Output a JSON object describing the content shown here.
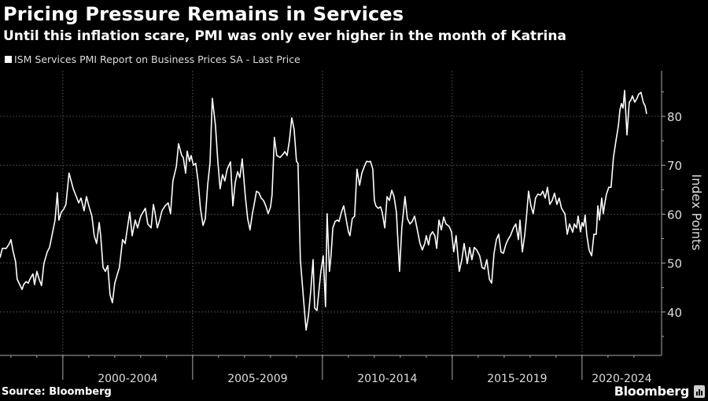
{
  "header": {
    "title": "Pricing Pressure Remains in Services",
    "subtitle": "Until this inflation scare, PMI was only ever higher in the month of Katrina"
  },
  "footer": {
    "source": "Source: Bloomberg",
    "brand": "Bloomberg",
    "brand_icon": "bloomberg-terminal-icon"
  },
  "colors": {
    "background": "#000000",
    "line": "#ffffff",
    "grid": "#555555",
    "axis": "#aaaaaa",
    "text": "#ffffff"
  },
  "chart_data": {
    "type": "line",
    "title": "Pricing Pressure Remains in Services",
    "subtitle": "Until this inflation scare, PMI was only ever higher in the month of Katrina",
    "legend": [
      "ISM Services PMI Report on Business Prices SA - Last Price"
    ],
    "legend_position": "top-left",
    "xlabel": "",
    "ylabel": "Index Points",
    "ylim": [
      33,
      89
    ],
    "xlim": [
      1997.58,
      2022.6
    ],
    "yticks": [
      40,
      50,
      60,
      70,
      80
    ],
    "ytick_labels": [
      "40",
      "50",
      "60",
      "70",
      "80"
    ],
    "xtick_groups": [
      {
        "label": "2000-2004",
        "start": 2000,
        "end": 2005
      },
      {
        "label": "2005-2009",
        "start": 2005,
        "end": 2010
      },
      {
        "label": "2010-2014",
        "start": 2010,
        "end": 2015
      },
      {
        "label": "2015-2019",
        "start": 2015,
        "end": 2020
      },
      {
        "label": "2020-2024",
        "start": 2020,
        "end": 2025
      }
    ],
    "grid": true,
    "series": [
      {
        "name": "ISM Services PMI Report on Business Prices SA - Last Price",
        "points": [
          [
            1997.58,
            51.1
          ],
          [
            1997.67,
            53.0
          ],
          [
            1997.82,
            53.0
          ],
          [
            1997.94,
            54.0
          ],
          [
            1998.0,
            54.8
          ],
          [
            1998.09,
            52.3
          ],
          [
            1998.18,
            50.3
          ],
          [
            1998.24,
            46.7
          ],
          [
            1998.34,
            45.6
          ],
          [
            1998.43,
            44.6
          ],
          [
            1998.49,
            45.6
          ],
          [
            1998.58,
            46.2
          ],
          [
            1998.67,
            45.9
          ],
          [
            1998.73,
            46.7
          ],
          [
            1998.85,
            47.8
          ],
          [
            1998.91,
            45.6
          ],
          [
            1999.0,
            48.3
          ],
          [
            1999.09,
            46.7
          ],
          [
            1999.18,
            45.4
          ],
          [
            1999.27,
            49.9
          ],
          [
            1999.4,
            52.3
          ],
          [
            1999.49,
            53.2
          ],
          [
            1999.58,
            55.6
          ],
          [
            1999.7,
            58.8
          ],
          [
            1999.79,
            64.4
          ],
          [
            1999.85,
            58.8
          ],
          [
            1999.94,
            60.4
          ],
          [
            2000.03,
            61.0
          ],
          [
            2000.12,
            62.0
          ],
          [
            2000.24,
            68.4
          ],
          [
            2000.4,
            65.2
          ],
          [
            2000.52,
            63.6
          ],
          [
            2000.61,
            62.3
          ],
          [
            2000.7,
            63.3
          ],
          [
            2000.82,
            60.7
          ],
          [
            2000.91,
            63.6
          ],
          [
            2001.0,
            61.7
          ],
          [
            2001.12,
            59.6
          ],
          [
            2001.21,
            55.6
          ],
          [
            2001.3,
            54.0
          ],
          [
            2001.4,
            58.3
          ],
          [
            2001.46,
            55.6
          ],
          [
            2001.55,
            49.1
          ],
          [
            2001.64,
            48.3
          ],
          [
            2001.73,
            49.5
          ],
          [
            2001.82,
            43.5
          ],
          [
            2001.91,
            41.9
          ],
          [
            2002.0,
            45.9
          ],
          [
            2002.09,
            47.5
          ],
          [
            2002.18,
            49.1
          ],
          [
            2002.3,
            54.8
          ],
          [
            2002.4,
            54.0
          ],
          [
            2002.49,
            57.2
          ],
          [
            2002.58,
            60.4
          ],
          [
            2002.67,
            55.6
          ],
          [
            2002.79,
            58.8
          ],
          [
            2002.88,
            57.2
          ],
          [
            2003.0,
            59.6
          ],
          [
            2003.09,
            60.4
          ],
          [
            2003.18,
            61.2
          ],
          [
            2003.27,
            58.0
          ],
          [
            2003.4,
            57.2
          ],
          [
            2003.49,
            62.0
          ],
          [
            2003.55,
            60.4
          ],
          [
            2003.64,
            57.2
          ],
          [
            2003.73,
            58.8
          ],
          [
            2003.82,
            60.7
          ],
          [
            2003.94,
            61.7
          ],
          [
            2004.06,
            62.3
          ],
          [
            2004.15,
            60.1
          ],
          [
            2004.24,
            66.8
          ],
          [
            2004.37,
            69.7
          ],
          [
            2004.46,
            74.4
          ],
          [
            2004.58,
            72.0
          ],
          [
            2004.64,
            71.6
          ],
          [
            2004.73,
            68.4
          ],
          [
            2004.79,
            72.9
          ],
          [
            2004.88,
            70.8
          ],
          [
            2004.94,
            72.0
          ],
          [
            2005.03,
            70.0
          ],
          [
            2005.12,
            70.4
          ],
          [
            2005.21,
            66.8
          ],
          [
            2005.3,
            61.2
          ],
          [
            2005.4,
            57.7
          ],
          [
            2005.49,
            59.1
          ],
          [
            2005.58,
            66.0
          ],
          [
            2005.67,
            70.5
          ],
          [
            2005.76,
            83.7
          ],
          [
            2005.88,
            78.1
          ],
          [
            2005.97,
            70.8
          ],
          [
            2006.06,
            65.2
          ],
          [
            2006.15,
            68.1
          ],
          [
            2006.24,
            66.8
          ],
          [
            2006.33,
            69.2
          ],
          [
            2006.46,
            70.7
          ],
          [
            2006.55,
            61.7
          ],
          [
            2006.64,
            66.5
          ],
          [
            2006.73,
            68.7
          ],
          [
            2006.82,
            67.5
          ],
          [
            2006.91,
            71.3
          ],
          [
            2007.03,
            63.6
          ],
          [
            2007.12,
            59.1
          ],
          [
            2007.21,
            56.8
          ],
          [
            2007.3,
            60.1
          ],
          [
            2007.37,
            62.0
          ],
          [
            2007.46,
            64.7
          ],
          [
            2007.55,
            64.4
          ],
          [
            2007.64,
            63.3
          ],
          [
            2007.73,
            62.8
          ],
          [
            2007.82,
            61.7
          ],
          [
            2007.91,
            60.1
          ],
          [
            2008.0,
            61.5
          ],
          [
            2008.06,
            63.9
          ],
          [
            2008.15,
            75.7
          ],
          [
            2008.24,
            72.0
          ],
          [
            2008.37,
            71.6
          ],
          [
            2008.49,
            72.3
          ],
          [
            2008.55,
            72.8
          ],
          [
            2008.64,
            72.0
          ],
          [
            2008.73,
            75.2
          ],
          [
            2008.82,
            79.7
          ],
          [
            2008.91,
            77.3
          ],
          [
            2009.0,
            70.8
          ],
          [
            2009.06,
            70.4
          ],
          [
            2009.15,
            50.7
          ],
          [
            2009.27,
            42.7
          ],
          [
            2009.37,
            36.3
          ],
          [
            2009.46,
            39.2
          ],
          [
            2009.55,
            44.3
          ],
          [
            2009.64,
            50.7
          ],
          [
            2009.7,
            40.8
          ],
          [
            2009.79,
            40.3
          ],
          [
            2009.94,
            48.3
          ],
          [
            2010.03,
            51.5
          ],
          [
            2010.12,
            41.1
          ],
          [
            2010.18,
            60.1
          ],
          [
            2010.27,
            48.3
          ],
          [
            2010.33,
            51.5
          ],
          [
            2010.4,
            57.2
          ],
          [
            2010.49,
            58.5
          ],
          [
            2010.58,
            58.8
          ],
          [
            2010.64,
            58.5
          ],
          [
            2010.73,
            60.4
          ],
          [
            2010.82,
            61.7
          ],
          [
            2010.91,
            59.1
          ],
          [
            2011.0,
            56.4
          ],
          [
            2011.06,
            55.6
          ],
          [
            2011.15,
            59.1
          ],
          [
            2011.24,
            59.6
          ],
          [
            2011.33,
            69.2
          ],
          [
            2011.43,
            65.9
          ],
          [
            2011.52,
            68.4
          ],
          [
            2011.61,
            69.7
          ],
          [
            2011.7,
            70.8
          ],
          [
            2011.79,
            70.7
          ],
          [
            2011.85,
            70.8
          ],
          [
            2011.94,
            69.2
          ],
          [
            2012.0,
            62.8
          ],
          [
            2012.06,
            61.7
          ],
          [
            2012.15,
            61.2
          ],
          [
            2012.24,
            61.5
          ],
          [
            2012.3,
            60.4
          ],
          [
            2012.4,
            57.2
          ],
          [
            2012.49,
            63.6
          ],
          [
            2012.58,
            62.8
          ],
          [
            2012.67,
            64.9
          ],
          [
            2012.76,
            63.6
          ],
          [
            2012.85,
            60.4
          ],
          [
            2012.97,
            48.3
          ],
          [
            2013.06,
            57.2
          ],
          [
            2013.18,
            63.6
          ],
          [
            2013.27,
            59.1
          ],
          [
            2013.37,
            58.0
          ],
          [
            2013.46,
            58.5
          ],
          [
            2013.55,
            59.6
          ],
          [
            2013.64,
            57.2
          ],
          [
            2013.76,
            54.0
          ],
          [
            2013.85,
            52.7
          ],
          [
            2013.94,
            54.0
          ],
          [
            2014.0,
            55.6
          ],
          [
            2014.09,
            53.7
          ],
          [
            2014.15,
            55.6
          ],
          [
            2014.24,
            56.4
          ],
          [
            2014.33,
            55.6
          ],
          [
            2014.4,
            53.0
          ],
          [
            2014.49,
            58.8
          ],
          [
            2014.58,
            56.8
          ],
          [
            2014.67,
            59.4
          ],
          [
            2014.76,
            58.0
          ],
          [
            2014.88,
            57.5
          ],
          [
            2014.97,
            56.4
          ],
          [
            2015.06,
            52.3
          ],
          [
            2015.15,
            55.6
          ],
          [
            2015.27,
            48.3
          ],
          [
            2015.37,
            50.7
          ],
          [
            2015.46,
            54.0
          ],
          [
            2015.58,
            49.9
          ],
          [
            2015.67,
            53.2
          ],
          [
            2015.76,
            50.7
          ],
          [
            2015.85,
            53.2
          ],
          [
            2015.94,
            52.7
          ],
          [
            2016.06,
            51.5
          ],
          [
            2016.15,
            49.1
          ],
          [
            2016.24,
            48.8
          ],
          [
            2016.33,
            50.7
          ],
          [
            2016.43,
            46.7
          ],
          [
            2016.52,
            45.9
          ],
          [
            2016.61,
            52.0
          ],
          [
            2016.7,
            54.8
          ],
          [
            2016.79,
            55.9
          ],
          [
            2016.88,
            52.3
          ],
          [
            2016.97,
            52.0
          ],
          [
            2017.06,
            53.7
          ],
          [
            2017.15,
            54.8
          ],
          [
            2017.24,
            55.6
          ],
          [
            2017.36,
            57.2
          ],
          [
            2017.45,
            58.0
          ],
          [
            2017.55,
            54.8
          ],
          [
            2017.61,
            58.8
          ],
          [
            2017.7,
            52.3
          ],
          [
            2017.79,
            55.6
          ],
          [
            2017.85,
            58.8
          ],
          [
            2017.94,
            64.7
          ],
          [
            2018.03,
            61.7
          ],
          [
            2018.12,
            60.1
          ],
          [
            2018.21,
            63.3
          ],
          [
            2018.3,
            64.1
          ],
          [
            2018.4,
            63.9
          ],
          [
            2018.49,
            64.7
          ],
          [
            2018.58,
            63.3
          ],
          [
            2018.67,
            65.5
          ],
          [
            2018.76,
            62.0
          ],
          [
            2018.85,
            62.8
          ],
          [
            2018.94,
            64.3
          ],
          [
            2019.03,
            62.0
          ],
          [
            2019.12,
            63.3
          ],
          [
            2019.21,
            61.2
          ],
          [
            2019.3,
            60.4
          ],
          [
            2019.34,
            60.1
          ],
          [
            2019.43,
            55.9
          ],
          [
            2019.52,
            58.0
          ],
          [
            2019.64,
            56.3
          ],
          [
            2019.7,
            58.0
          ],
          [
            2019.79,
            57.2
          ],
          [
            2019.85,
            59.6
          ],
          [
            2019.94,
            56.4
          ],
          [
            2020.0,
            58.3
          ],
          [
            2020.06,
            57.5
          ],
          [
            2020.12,
            59.8
          ],
          [
            2020.18,
            55.9
          ],
          [
            2020.27,
            52.7
          ],
          [
            2020.37,
            51.5
          ],
          [
            2020.46,
            55.9
          ],
          [
            2020.55,
            55.9
          ],
          [
            2020.61,
            61.7
          ],
          [
            2020.67,
            58.8
          ],
          [
            2020.76,
            63.3
          ],
          [
            2020.82,
            60.1
          ],
          [
            2020.88,
            62.3
          ],
          [
            2020.94,
            64.1
          ],
          [
            2021.03,
            65.5
          ],
          [
            2021.12,
            65.5
          ],
          [
            2021.21,
            71.6
          ],
          [
            2021.3,
            74.8
          ],
          [
            2021.4,
            78.1
          ],
          [
            2021.46,
            81.3
          ],
          [
            2021.52,
            82.6
          ],
          [
            2021.58,
            81.7
          ],
          [
            2021.64,
            85.3
          ],
          [
            2021.73,
            76.2
          ],
          [
            2021.82,
            82.9
          ],
          [
            2021.88,
            83.3
          ],
          [
            2021.94,
            84.2
          ],
          [
            2022.03,
            82.9
          ],
          [
            2022.12,
            83.7
          ],
          [
            2022.18,
            84.5
          ],
          [
            2022.27,
            84.9
          ],
          [
            2022.36,
            82.9
          ],
          [
            2022.43,
            82.1
          ],
          [
            2022.49,
            80.5
          ]
        ]
      }
    ]
  }
}
